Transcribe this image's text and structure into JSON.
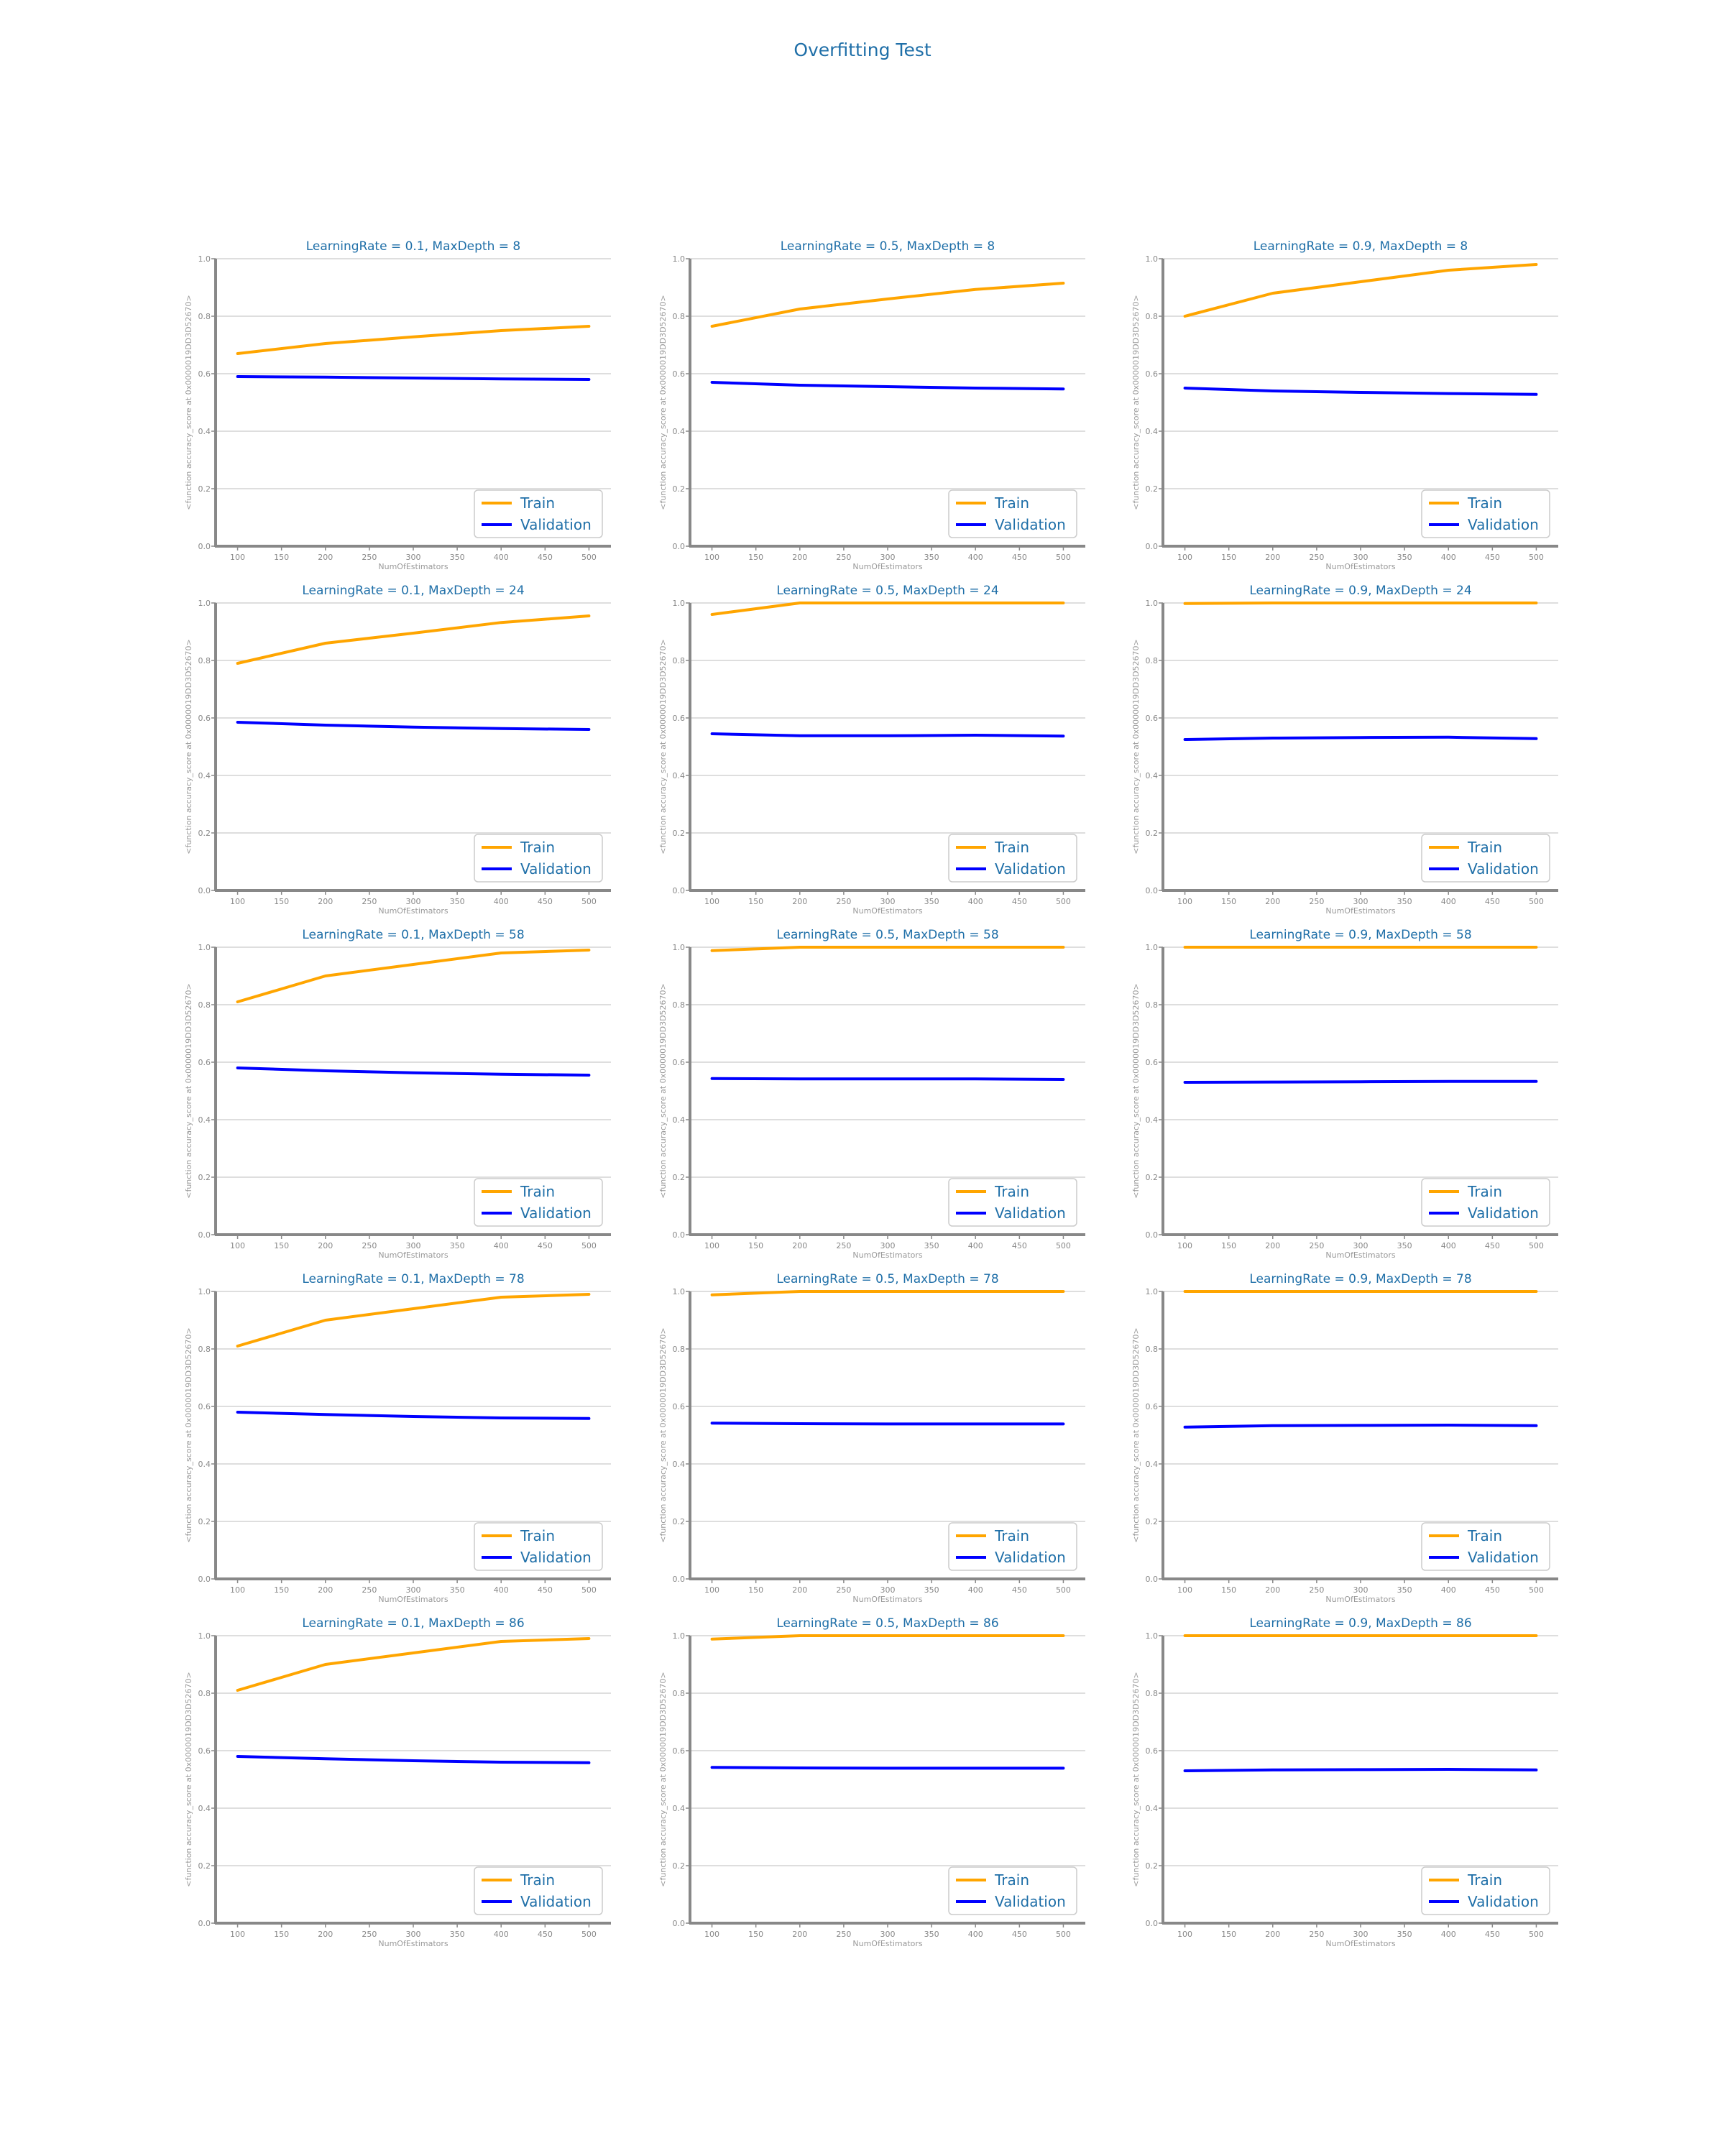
{
  "suptitle": "Overfitting Test",
  "colors": {
    "train": "#FFA500",
    "validation": "#0000FF",
    "text": "#1f6fa8",
    "grid": "#d3d3d3",
    "axis": "#888888"
  },
  "chart_data": [
    {
      "type": "line",
      "title": "LearningRate = 0.1, MaxDepth = 8",
      "xlabel": "NumOfEstimators",
      "ylabel": "<function accuracy_score at 0x0000019DD3D52670>",
      "x": [
        100,
        200,
        300,
        400,
        500
      ],
      "xticks": [
        100,
        150,
        200,
        250,
        300,
        350,
        400,
        450,
        500
      ],
      "yticks": [
        0.0,
        0.2,
        0.4,
        0.6,
        0.8,
        1.0
      ],
      "ylim": [
        0,
        1
      ],
      "grid": "y",
      "legend": "lower-right",
      "series": [
        {
          "name": "Train",
          "values": [
            0.67,
            0.705,
            0.728,
            0.75,
            0.765
          ]
        },
        {
          "name": "Validation",
          "values": [
            0.59,
            0.588,
            0.585,
            0.582,
            0.58
          ]
        }
      ]
    },
    {
      "type": "line",
      "title": "LearningRate = 0.5, MaxDepth = 8",
      "xlabel": "NumOfEstimators",
      "ylabel": "<function accuracy_score at 0x0000019DD3D52670>",
      "x": [
        100,
        200,
        300,
        400,
        500
      ],
      "xticks": [
        100,
        150,
        200,
        250,
        300,
        350,
        400,
        450,
        500
      ],
      "yticks": [
        0.0,
        0.2,
        0.4,
        0.6,
        0.8,
        1.0
      ],
      "ylim": [
        0,
        1
      ],
      "grid": "y",
      "legend": "lower-right",
      "series": [
        {
          "name": "Train",
          "values": [
            0.765,
            0.825,
            0.86,
            0.893,
            0.915
          ]
        },
        {
          "name": "Validation",
          "values": [
            0.57,
            0.56,
            0.555,
            0.55,
            0.547
          ]
        }
      ]
    },
    {
      "type": "line",
      "title": "LearningRate = 0.9, MaxDepth = 8",
      "xlabel": "NumOfEstimators",
      "ylabel": "<function accuracy_score at 0x0000019DD3D52670>",
      "x": [
        100,
        200,
        300,
        400,
        500
      ],
      "xticks": [
        100,
        150,
        200,
        250,
        300,
        350,
        400,
        450,
        500
      ],
      "yticks": [
        0.0,
        0.2,
        0.4,
        0.6,
        0.8,
        1.0
      ],
      "ylim": [
        0,
        1
      ],
      "grid": "y",
      "legend": "lower-right",
      "series": [
        {
          "name": "Train",
          "values": [
            0.8,
            0.88,
            0.92,
            0.96,
            0.98
          ]
        },
        {
          "name": "Validation",
          "values": [
            0.55,
            0.54,
            0.535,
            0.531,
            0.528
          ]
        }
      ]
    },
    {
      "type": "line",
      "title": "LearningRate = 0.1, MaxDepth = 24",
      "xlabel": "NumOfEstimators",
      "ylabel": "<function accuracy_score at 0x0000019DD3D52670>",
      "x": [
        100,
        200,
        300,
        400,
        500
      ],
      "xticks": [
        100,
        150,
        200,
        250,
        300,
        350,
        400,
        450,
        500
      ],
      "yticks": [
        0.0,
        0.2,
        0.4,
        0.6,
        0.8,
        1.0
      ],
      "ylim": [
        0,
        1
      ],
      "grid": "y",
      "legend": "lower-right",
      "series": [
        {
          "name": "Train",
          "values": [
            0.79,
            0.86,
            0.895,
            0.932,
            0.955
          ]
        },
        {
          "name": "Validation",
          "values": [
            0.585,
            0.575,
            0.568,
            0.563,
            0.56
          ]
        }
      ]
    },
    {
      "type": "line",
      "title": "LearningRate = 0.5, MaxDepth = 24",
      "xlabel": "NumOfEstimators",
      "ylabel": "<function accuracy_score at 0x0000019DD3D52670>",
      "x": [
        100,
        200,
        300,
        400,
        500
      ],
      "xticks": [
        100,
        150,
        200,
        250,
        300,
        350,
        400,
        450,
        500
      ],
      "yticks": [
        0.0,
        0.2,
        0.4,
        0.6,
        0.8,
        1.0
      ],
      "ylim": [
        0,
        1
      ],
      "grid": "y",
      "legend": "lower-right",
      "series": [
        {
          "name": "Train",
          "values": [
            0.96,
            1.0,
            1.0,
            1.0,
            1.0
          ]
        },
        {
          "name": "Validation",
          "values": [
            0.545,
            0.538,
            0.538,
            0.54,
            0.537
          ]
        }
      ]
    },
    {
      "type": "line",
      "title": "LearningRate = 0.9, MaxDepth = 24",
      "xlabel": "NumOfEstimators",
      "ylabel": "<function accuracy_score at 0x0000019DD3D52670>",
      "x": [
        100,
        200,
        300,
        400,
        500
      ],
      "xticks": [
        100,
        150,
        200,
        250,
        300,
        350,
        400,
        450,
        500
      ],
      "yticks": [
        0.0,
        0.2,
        0.4,
        0.6,
        0.8,
        1.0
      ],
      "ylim": [
        0,
        1
      ],
      "grid": "y",
      "legend": "lower-right",
      "series": [
        {
          "name": "Train",
          "values": [
            0.998,
            1.0,
            1.0,
            1.0,
            1.0
          ]
        },
        {
          "name": "Validation",
          "values": [
            0.525,
            0.53,
            0.532,
            0.533,
            0.528
          ]
        }
      ]
    },
    {
      "type": "line",
      "title": "LearningRate = 0.1, MaxDepth = 58",
      "xlabel": "NumOfEstimators",
      "ylabel": "<function accuracy_score at 0x0000019DD3D52670>",
      "x": [
        100,
        200,
        300,
        400,
        500
      ],
      "xticks": [
        100,
        150,
        200,
        250,
        300,
        350,
        400,
        450,
        500
      ],
      "yticks": [
        0.0,
        0.2,
        0.4,
        0.6,
        0.8,
        1.0
      ],
      "ylim": [
        0,
        1
      ],
      "grid": "y",
      "legend": "lower-right",
      "series": [
        {
          "name": "Train",
          "values": [
            0.81,
            0.9,
            0.94,
            0.98,
            0.99
          ]
        },
        {
          "name": "Validation",
          "values": [
            0.58,
            0.57,
            0.563,
            0.558,
            0.555
          ]
        }
      ]
    },
    {
      "type": "line",
      "title": "LearningRate = 0.5, MaxDepth = 58",
      "xlabel": "NumOfEstimators",
      "ylabel": "<function accuracy_score at 0x0000019DD3D52670>",
      "x": [
        100,
        200,
        300,
        400,
        500
      ],
      "xticks": [
        100,
        150,
        200,
        250,
        300,
        350,
        400,
        450,
        500
      ],
      "yticks": [
        0.0,
        0.2,
        0.4,
        0.6,
        0.8,
        1.0
      ],
      "ylim": [
        0,
        1
      ],
      "grid": "y",
      "legend": "lower-right",
      "series": [
        {
          "name": "Train",
          "values": [
            0.988,
            1.0,
            1.0,
            1.0,
            1.0
          ]
        },
        {
          "name": "Validation",
          "values": [
            0.543,
            0.542,
            0.542,
            0.542,
            0.54
          ]
        }
      ]
    },
    {
      "type": "line",
      "title": "LearningRate = 0.9, MaxDepth = 58",
      "xlabel": "NumOfEstimators",
      "ylabel": "<function accuracy_score at 0x0000019DD3D52670>",
      "x": [
        100,
        200,
        300,
        400,
        500
      ],
      "xticks": [
        100,
        150,
        200,
        250,
        300,
        350,
        400,
        450,
        500
      ],
      "yticks": [
        0.0,
        0.2,
        0.4,
        0.6,
        0.8,
        1.0
      ],
      "ylim": [
        0,
        1
      ],
      "grid": "y",
      "legend": "lower-right",
      "series": [
        {
          "name": "Train",
          "values": [
            1.0,
            1.0,
            1.0,
            1.0,
            1.0
          ]
        },
        {
          "name": "Validation",
          "values": [
            0.53,
            0.531,
            0.532,
            0.533,
            0.533
          ]
        }
      ]
    },
    {
      "type": "line",
      "title": "LearningRate = 0.1, MaxDepth = 78",
      "xlabel": "NumOfEstimators",
      "ylabel": "<function accuracy_score at 0x0000019DD3D52670>",
      "x": [
        100,
        200,
        300,
        400,
        500
      ],
      "xticks": [
        100,
        150,
        200,
        250,
        300,
        350,
        400,
        450,
        500
      ],
      "yticks": [
        0.0,
        0.2,
        0.4,
        0.6,
        0.8,
        1.0
      ],
      "ylim": [
        0,
        1
      ],
      "grid": "y",
      "legend": "lower-right",
      "series": [
        {
          "name": "Train",
          "values": [
            0.81,
            0.9,
            0.94,
            0.98,
            0.99
          ]
        },
        {
          "name": "Validation",
          "values": [
            0.58,
            0.572,
            0.565,
            0.56,
            0.558
          ]
        }
      ]
    },
    {
      "type": "line",
      "title": "LearningRate = 0.5, MaxDepth = 78",
      "xlabel": "NumOfEstimators",
      "ylabel": "<function accuracy_score at 0x0000019DD3D52670>",
      "x": [
        100,
        200,
        300,
        400,
        500
      ],
      "xticks": [
        100,
        150,
        200,
        250,
        300,
        350,
        400,
        450,
        500
      ],
      "yticks": [
        0.0,
        0.2,
        0.4,
        0.6,
        0.8,
        1.0
      ],
      "ylim": [
        0,
        1
      ],
      "grid": "y",
      "legend": "lower-right",
      "series": [
        {
          "name": "Train",
          "values": [
            0.988,
            1.0,
            1.0,
            1.0,
            1.0
          ]
        },
        {
          "name": "Validation",
          "values": [
            0.542,
            0.54,
            0.539,
            0.539,
            0.539
          ]
        }
      ]
    },
    {
      "type": "line",
      "title": "LearningRate = 0.9, MaxDepth = 78",
      "xlabel": "NumOfEstimators",
      "ylabel": "<function accuracy_score at 0x0000019DD3D52670>",
      "x": [
        100,
        200,
        300,
        400,
        500
      ],
      "xticks": [
        100,
        150,
        200,
        250,
        300,
        350,
        400,
        450,
        500
      ],
      "yticks": [
        0.0,
        0.2,
        0.4,
        0.6,
        0.8,
        1.0
      ],
      "ylim": [
        0,
        1
      ],
      "grid": "y",
      "legend": "lower-right",
      "series": [
        {
          "name": "Train",
          "values": [
            1.0,
            1.0,
            1.0,
            1.0,
            1.0
          ]
        },
        {
          "name": "Validation",
          "values": [
            0.528,
            0.533,
            0.534,
            0.535,
            0.533
          ]
        }
      ]
    },
    {
      "type": "line",
      "title": "LearningRate = 0.1, MaxDepth = 86",
      "xlabel": "NumOfEstimators",
      "ylabel": "<function accuracy_score at 0x0000019DD3D52670>",
      "x": [
        100,
        200,
        300,
        400,
        500
      ],
      "xticks": [
        100,
        150,
        200,
        250,
        300,
        350,
        400,
        450,
        500
      ],
      "yticks": [
        0.0,
        0.2,
        0.4,
        0.6,
        0.8,
        1.0
      ],
      "ylim": [
        0,
        1
      ],
      "grid": "y",
      "legend": "lower-right",
      "series": [
        {
          "name": "Train",
          "values": [
            0.81,
            0.9,
            0.94,
            0.98,
            0.99
          ]
        },
        {
          "name": "Validation",
          "values": [
            0.58,
            0.572,
            0.565,
            0.56,
            0.558
          ]
        }
      ]
    },
    {
      "type": "line",
      "title": "LearningRate = 0.5, MaxDepth = 86",
      "xlabel": "NumOfEstimators",
      "ylabel": "<function accuracy_score at 0x0000019DD3D52670>",
      "x": [
        100,
        200,
        300,
        400,
        500
      ],
      "xticks": [
        100,
        150,
        200,
        250,
        300,
        350,
        400,
        450,
        500
      ],
      "yticks": [
        0.0,
        0.2,
        0.4,
        0.6,
        0.8,
        1.0
      ],
      "ylim": [
        0,
        1
      ],
      "grid": "y",
      "legend": "lower-right",
      "series": [
        {
          "name": "Train",
          "values": [
            0.988,
            1.0,
            1.0,
            1.0,
            1.0
          ]
        },
        {
          "name": "Validation",
          "values": [
            0.542,
            0.54,
            0.539,
            0.539,
            0.539
          ]
        }
      ]
    },
    {
      "type": "line",
      "title": "LearningRate = 0.9, MaxDepth = 86",
      "xlabel": "NumOfEstimators",
      "ylabel": "<function accuracy_score at 0x0000019DD3D52670>",
      "x": [
        100,
        200,
        300,
        400,
        500
      ],
      "xticks": [
        100,
        150,
        200,
        250,
        300,
        350,
        400,
        450,
        500
      ],
      "yticks": [
        0.0,
        0.2,
        0.4,
        0.6,
        0.8,
        1.0
      ],
      "ylim": [
        0,
        1
      ],
      "grid": "y",
      "legend": "lower-right",
      "series": [
        {
          "name": "Train",
          "values": [
            1.0,
            1.0,
            1.0,
            1.0,
            1.0
          ]
        },
        {
          "name": "Validation",
          "values": [
            0.53,
            0.533,
            0.534,
            0.535,
            0.533
          ]
        }
      ]
    }
  ]
}
